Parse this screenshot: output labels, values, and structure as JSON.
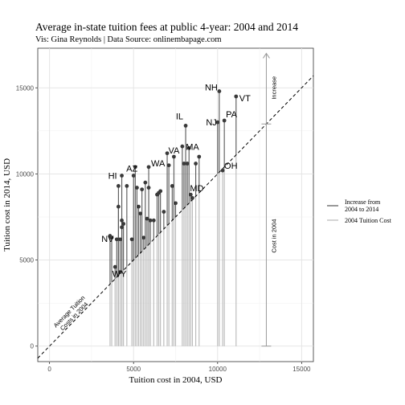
{
  "chart_data": {
    "type": "scatter",
    "title": "Average in-state tuition fees at public 4-year: 2004 and 2014",
    "subtitle": "Vis: Gina Reynolds | Data Source: onlinembapage.com",
    "xlabel": "Tuition cost in 2004, USD",
    "ylabel": "Tuition cost in 2014, USD",
    "xlim": [
      -700,
      15700
    ],
    "ylim": [
      -900,
      17300
    ],
    "xticks": [
      0,
      5000,
      10000,
      15000
    ],
    "yticks": [
      0,
      5000,
      10000,
      15000
    ],
    "xtick_labels": [
      "0",
      "5000",
      "10000",
      "15000"
    ],
    "ytick_labels": [
      "0",
      "5000",
      "10000",
      "15000"
    ],
    "grid": true,
    "legend_position": "right",
    "legend": [
      {
        "label": "Increase from\n2004 to 2014",
        "color": "#555555"
      },
      {
        "label": "2004 Tuition Cost",
        "color": "#b8b8b8"
      }
    ],
    "reference_line": {
      "slope": 1,
      "intercept": 0,
      "style": "dashed",
      "label": "Average Tuition\nCosts in 2004"
    },
    "annotations": {
      "cost_label": "Cost in 2004",
      "increase_label": "Increase",
      "arrow_x": 12900,
      "arrow_y_range": [
        0,
        17000
      ],
      "arrow_break_y": 12900
    },
    "points": [
      {
        "x": 3600,
        "y": 6400,
        "label": ""
      },
      {
        "x": 3700,
        "y": 6300,
        "label": ""
      },
      {
        "x": 3900,
        "y": 4600,
        "label": ""
      },
      {
        "x": 4000,
        "y": 6200,
        "label": ""
      },
      {
        "x": 4100,
        "y": 8100,
        "label": ""
      },
      {
        "x": 4200,
        "y": 6200,
        "label": "NV"
      },
      {
        "x": 4200,
        "y": 4300,
        "label": "WY"
      },
      {
        "x": 4300,
        "y": 6900,
        "label": ""
      },
      {
        "x": 4300,
        "y": 7300,
        "label": ""
      },
      {
        "x": 4400,
        "y": 7100,
        "label": ""
      },
      {
        "x": 4100,
        "y": 9300,
        "label": ""
      },
      {
        "x": 4300,
        "y": 9900,
        "label": "HI"
      },
      {
        "x": 4600,
        "y": 9300,
        "label": ""
      },
      {
        "x": 4900,
        "y": 6200,
        "label": ""
      },
      {
        "x": 5000,
        "y": 9900,
        "label": "AZ"
      },
      {
        "x": 5100,
        "y": 10400,
        "label": ""
      },
      {
        "x": 5200,
        "y": 9200,
        "label": ""
      },
      {
        "x": 5300,
        "y": 8100,
        "label": ""
      },
      {
        "x": 5400,
        "y": 7700,
        "label": ""
      },
      {
        "x": 5500,
        "y": 9100,
        "label": ""
      },
      {
        "x": 5600,
        "y": 6300,
        "label": ""
      },
      {
        "x": 5700,
        "y": 9500,
        "label": ""
      },
      {
        "x": 5800,
        "y": 7400,
        "label": ""
      },
      {
        "x": 5900,
        "y": 9200,
        "label": ""
      },
      {
        "x": 5900,
        "y": 10400,
        "label": "WA"
      },
      {
        "x": 6000,
        "y": 7300,
        "label": ""
      },
      {
        "x": 6200,
        "y": 7300,
        "label": ""
      },
      {
        "x": 6400,
        "y": 8800,
        "label": ""
      },
      {
        "x": 6500,
        "y": 8900,
        "label": ""
      },
      {
        "x": 6600,
        "y": 9000,
        "label": ""
      },
      {
        "x": 6800,
        "y": 7800,
        "label": ""
      },
      {
        "x": 7000,
        "y": 11200,
        "label": ""
      },
      {
        "x": 7100,
        "y": 10500,
        "label": ""
      },
      {
        "x": 7300,
        "y": 9300,
        "label": ""
      },
      {
        "x": 7400,
        "y": 11000,
        "label": "VA"
      },
      {
        "x": 7500,
        "y": 8300,
        "label": ""
      },
      {
        "x": 7900,
        "y": 11600,
        "label": ""
      },
      {
        "x": 8000,
        "y": 10600,
        "label": ""
      },
      {
        "x": 8100,
        "y": 12800,
        "label": "IL"
      },
      {
        "x": 8200,
        "y": 10600,
        "label": ""
      },
      {
        "x": 8300,
        "y": 11500,
        "label": "MA"
      },
      {
        "x": 8400,
        "y": 8800,
        "label": "MD"
      },
      {
        "x": 8500,
        "y": 8600,
        "label": ""
      },
      {
        "x": 8700,
        "y": 10600,
        "label": ""
      },
      {
        "x": 8900,
        "y": 11000,
        "label": ""
      },
      {
        "x": 10000,
        "y": 13000,
        "label": "NJ"
      },
      {
        "x": 10300,
        "y": 10200,
        "label": "OH"
      },
      {
        "x": 10400,
        "y": 13100,
        "label": "PA"
      },
      {
        "x": 10100,
        "y": 14800,
        "label": "NH"
      },
      {
        "x": 11100,
        "y": 14500,
        "label": "VT"
      }
    ]
  }
}
